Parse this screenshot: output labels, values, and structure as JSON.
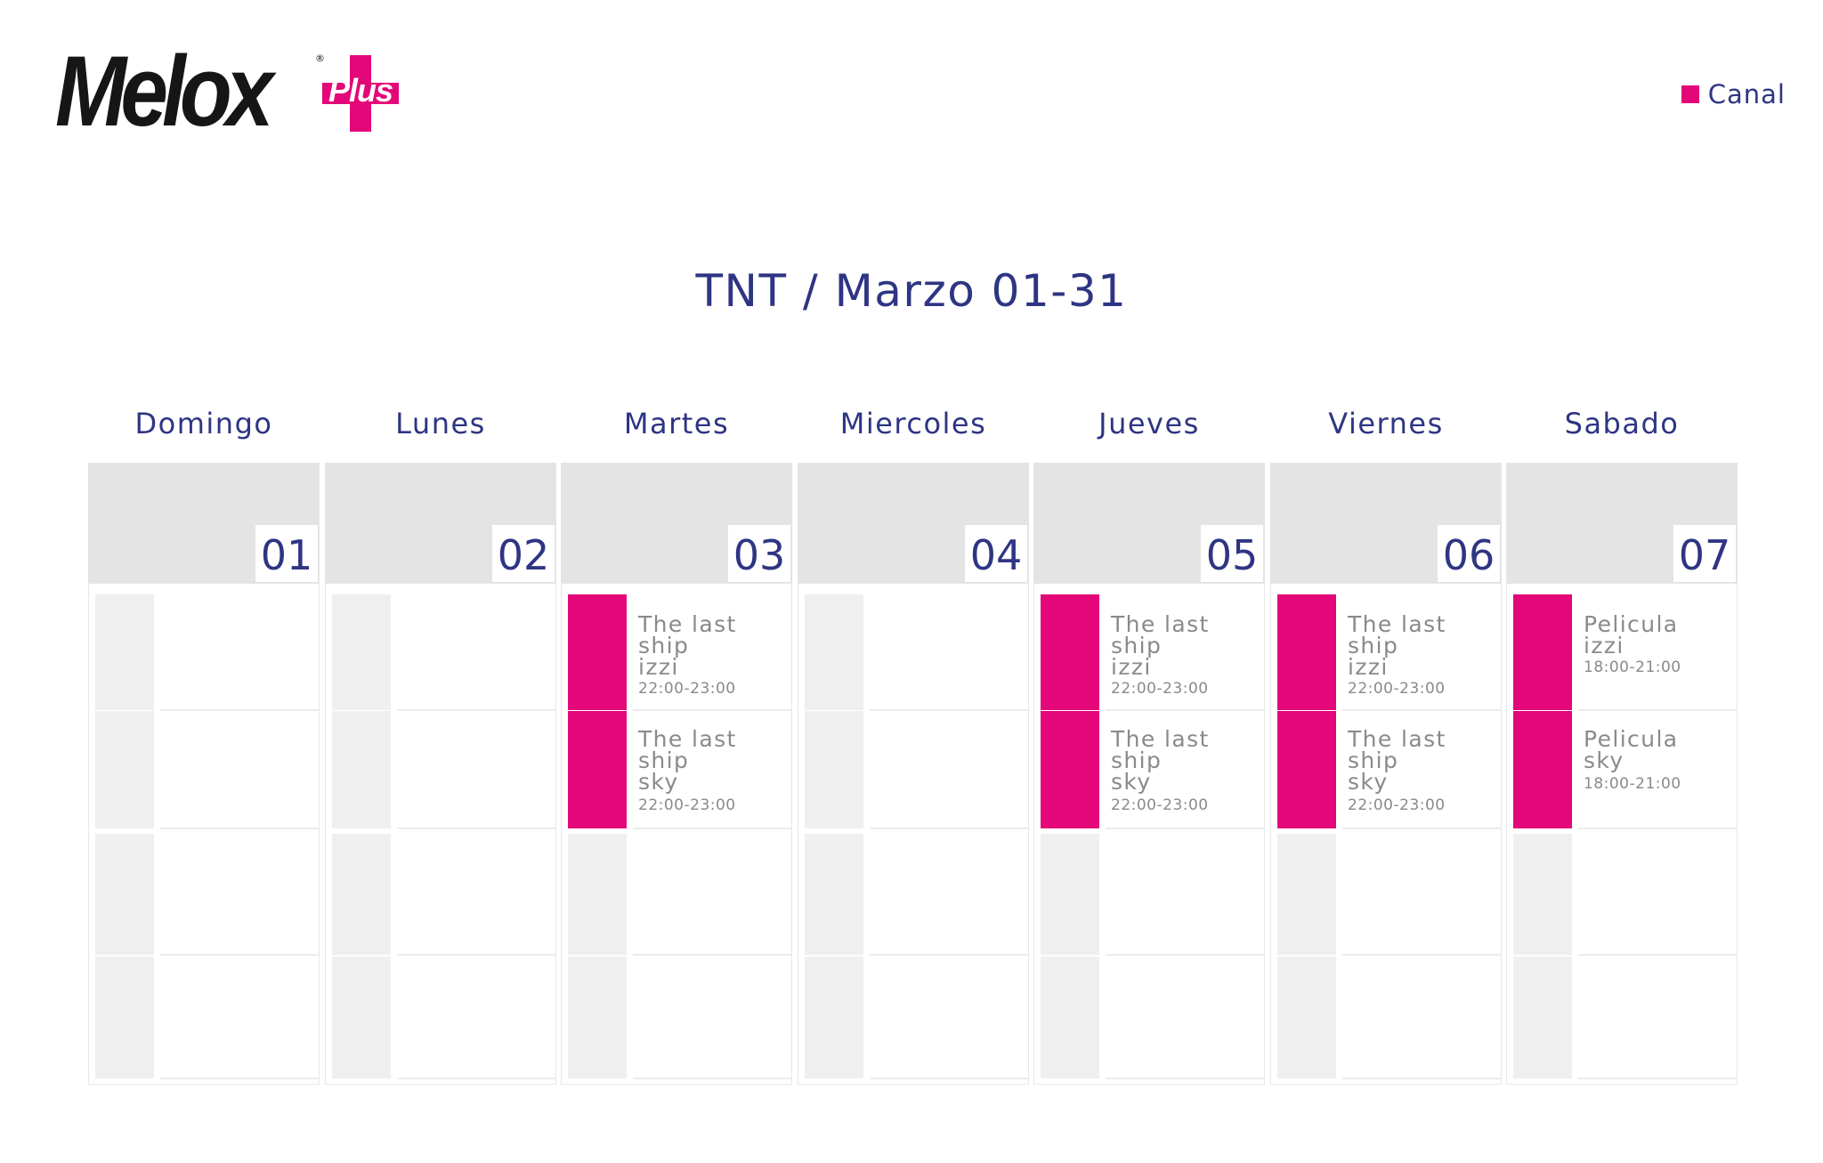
{
  "brand": {
    "name": "Melox",
    "badge": "Plus",
    "reg": "®",
    "accent": "#e3077a",
    "text_color": "#2e3583"
  },
  "legend": {
    "label": "Canal",
    "color": "#e3077a"
  },
  "title": "TNT / Marzo 01-31",
  "days": [
    {
      "name": "Domingo",
      "date": "01",
      "shows": []
    },
    {
      "name": "Lunes",
      "date": "02",
      "shows": []
    },
    {
      "name": "Martes",
      "date": "03",
      "shows": [
        {
          "title": "The last\nship\nizzi",
          "time": "22:00-23:00"
        },
        {
          "title": "The last\nship\nsky",
          "time": "22:00-23:00"
        }
      ]
    },
    {
      "name": "Miercoles",
      "date": "04",
      "shows": []
    },
    {
      "name": "Jueves",
      "date": "05",
      "shows": [
        {
          "title": "The last\nship\nizzi",
          "time": "22:00-23:00"
        },
        {
          "title": "The last\nship\nsky",
          "time": "22:00-23:00"
        }
      ]
    },
    {
      "name": "Viernes",
      "date": "06",
      "shows": [
        {
          "title": "The last\nship\nizzi",
          "time": "22:00-23:00"
        },
        {
          "title": "The last\nship\nsky",
          "time": "22:00-23:00"
        }
      ]
    },
    {
      "name": "Sabado",
      "date": "07",
      "shows": [
        {
          "title": "Pelicula\nizzi",
          "time": "18:00-21:00"
        },
        {
          "title": "Pelicula\nsky",
          "time": "18:00-21:00"
        }
      ]
    }
  ]
}
